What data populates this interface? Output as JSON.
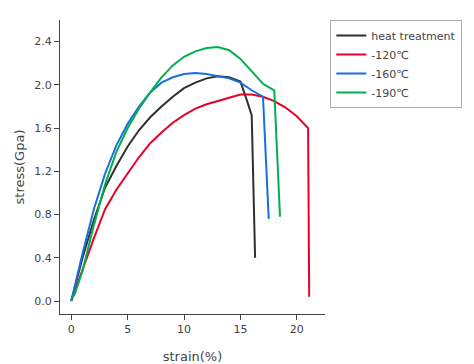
{
  "chart_data": {
    "type": "line",
    "xlabel": "strain(%)",
    "ylabel": "stress(Gpa)",
    "series": [
      {
        "name": "heat treatment",
        "color": "#303030",
        "x": [
          0,
          1,
          2,
          3,
          4,
          5,
          6,
          7,
          8,
          9,
          10,
          11,
          12,
          13,
          14,
          15,
          15.5,
          16.0,
          16.3,
          16.31
        ],
        "values": [
          0,
          0.4,
          0.75,
          1.05,
          1.25,
          1.43,
          1.58,
          1.7,
          1.8,
          1.89,
          1.97,
          2.02,
          2.06,
          2.08,
          2.07,
          2.03,
          1.88,
          1.72,
          0.4,
          0.4
        ]
      },
      {
        "name": "-120℃",
        "color": "#e8002a",
        "x": [
          0,
          1,
          2,
          3,
          4,
          5,
          6,
          7,
          8,
          9,
          10,
          11,
          12,
          13,
          14,
          15,
          16,
          17,
          18,
          19,
          20,
          21,
          21.1,
          21.11
        ],
        "values": [
          0,
          0.3,
          0.58,
          0.85,
          1.03,
          1.18,
          1.33,
          1.46,
          1.56,
          1.65,
          1.72,
          1.78,
          1.82,
          1.85,
          1.88,
          1.91,
          1.91,
          1.89,
          1.85,
          1.79,
          1.71,
          1.6,
          0.04,
          0.04
        ]
      },
      {
        "name": "-160℃",
        "color": "#1a6fdd",
        "x": [
          0,
          1,
          2,
          3,
          4,
          5,
          6,
          7,
          8,
          9,
          10,
          11,
          12,
          13,
          14,
          15,
          16,
          17,
          17.5,
          17.51
        ],
        "values": [
          0,
          0.44,
          0.85,
          1.18,
          1.44,
          1.64,
          1.8,
          1.93,
          2.02,
          2.07,
          2.1,
          2.11,
          2.1,
          2.08,
          2.06,
          2.02,
          1.95,
          1.89,
          0.76,
          0.76
        ]
      },
      {
        "name": "-190℃",
        "color": "#00b050",
        "x": [
          0,
          0.3,
          1,
          2,
          3,
          4,
          5,
          6,
          7,
          8,
          9,
          10,
          11,
          12,
          13,
          14,
          15,
          16,
          17,
          18,
          18.5,
          18.51
        ],
        "values": [
          0.02,
          0.06,
          0.28,
          0.7,
          1.08,
          1.38,
          1.6,
          1.78,
          1.93,
          2.07,
          2.18,
          2.26,
          2.31,
          2.34,
          2.35,
          2.32,
          2.24,
          2.12,
          2.01,
          1.95,
          0.78,
          0.78
        ]
      }
    ],
    "xlim": [
      -1.0,
      22.5
    ],
    "ylim": [
      -0.12,
      2.6
    ],
    "xticks": [
      0,
      5,
      10,
      15,
      20
    ],
    "yticks": [
      {
        "value": 0.0,
        "label": "0.0"
      },
      0.4,
      0.8,
      1.2,
      1.6,
      {
        "value": 2.0,
        "label": "2.0"
      },
      2.4
    ],
    "legend": "upper right",
    "grid": false
  }
}
